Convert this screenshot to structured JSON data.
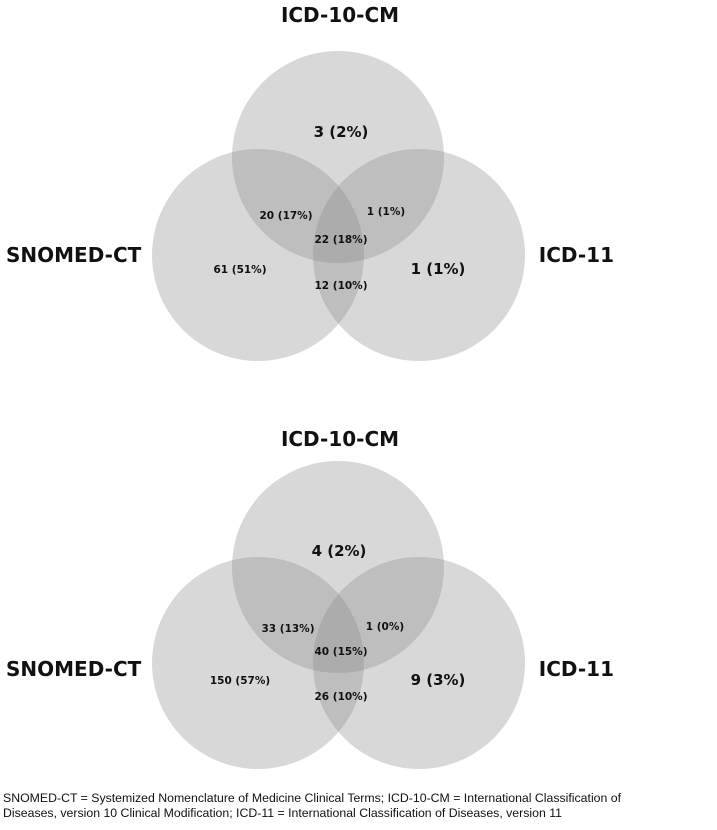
{
  "diagrams": [
    {
      "sets": {
        "top": "ICD-10-CM",
        "left": "SNOMED-CT",
        "right": "ICD-11"
      },
      "regions": {
        "top_only": "3 (2%)",
        "left_only": "61 (51%)",
        "right_only": "1 (1%)",
        "top_left": "20 (17%)",
        "top_right": "1 (1%)",
        "left_right": "12 (10%)",
        "all": "22 (18%)"
      }
    },
    {
      "sets": {
        "top": "ICD-10-CM",
        "left": "SNOMED-CT",
        "right": "ICD-11"
      },
      "regions": {
        "top_only": "4 (2%)",
        "left_only": "150 (57%)",
        "right_only": "9 (3%)",
        "top_left": "33 (13%)",
        "top_right": "1 (0%)",
        "left_right": "26 (10%)",
        "all": "40 (15%)"
      }
    }
  ],
  "caption": {
    "line1": "SNOMED-CT = Systemized Nomenclature of Medicine Clinical Terms; ICD-10-CM = International Classification of",
    "line2": "Diseases, version 10 Clinical Modification; ICD-11 = International Classification of Diseases, version 11"
  }
}
